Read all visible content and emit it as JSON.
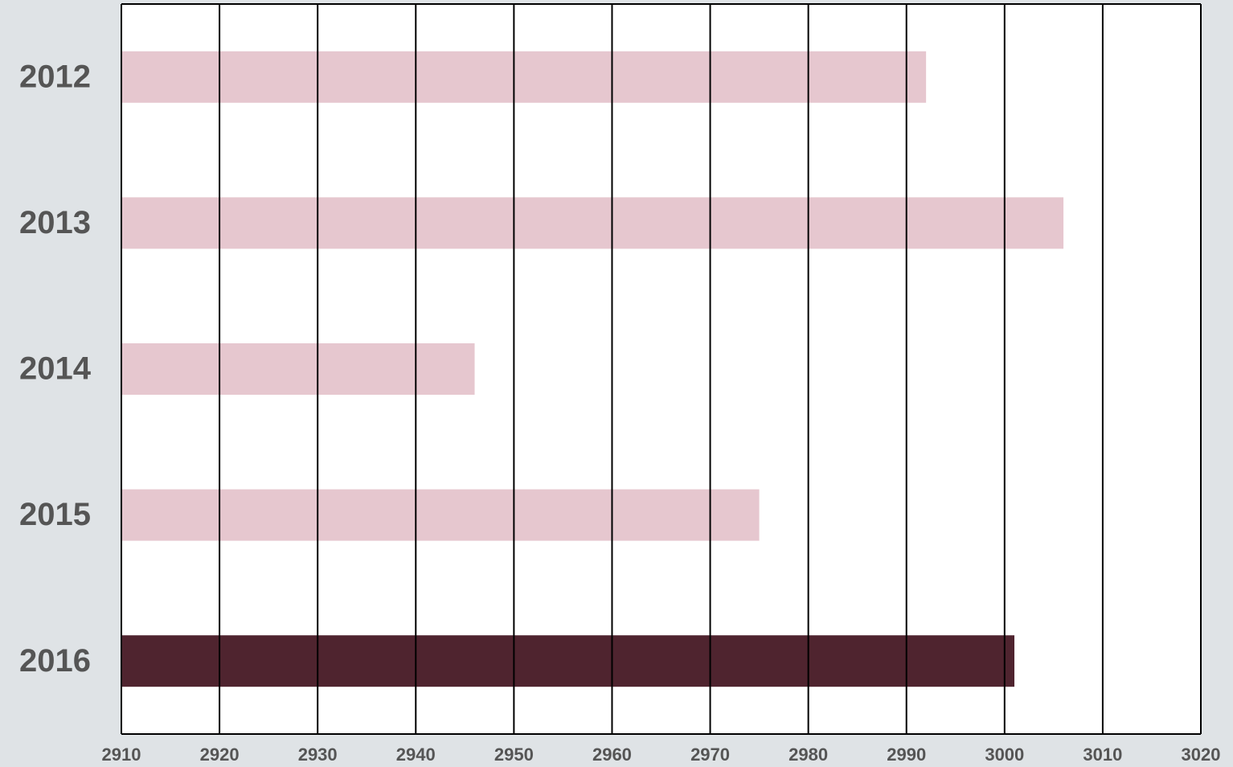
{
  "chart_data": {
    "type": "hbar",
    "categories": [
      "2012",
      "2013",
      "2014",
      "2015",
      "2016"
    ],
    "values": [
      2992,
      3006,
      2946,
      2975,
      3001
    ],
    "colors": [
      "#e6c7cf",
      "#e6c7cf",
      "#e6c7cf",
      "#e6c7cf",
      "#4f242f"
    ],
    "xlim": [
      2910,
      3020
    ],
    "xticks": [
      2910,
      2920,
      2930,
      2940,
      2950,
      2960,
      2970,
      2980,
      2990,
      3000,
      3010,
      3020
    ],
    "grid": true
  }
}
